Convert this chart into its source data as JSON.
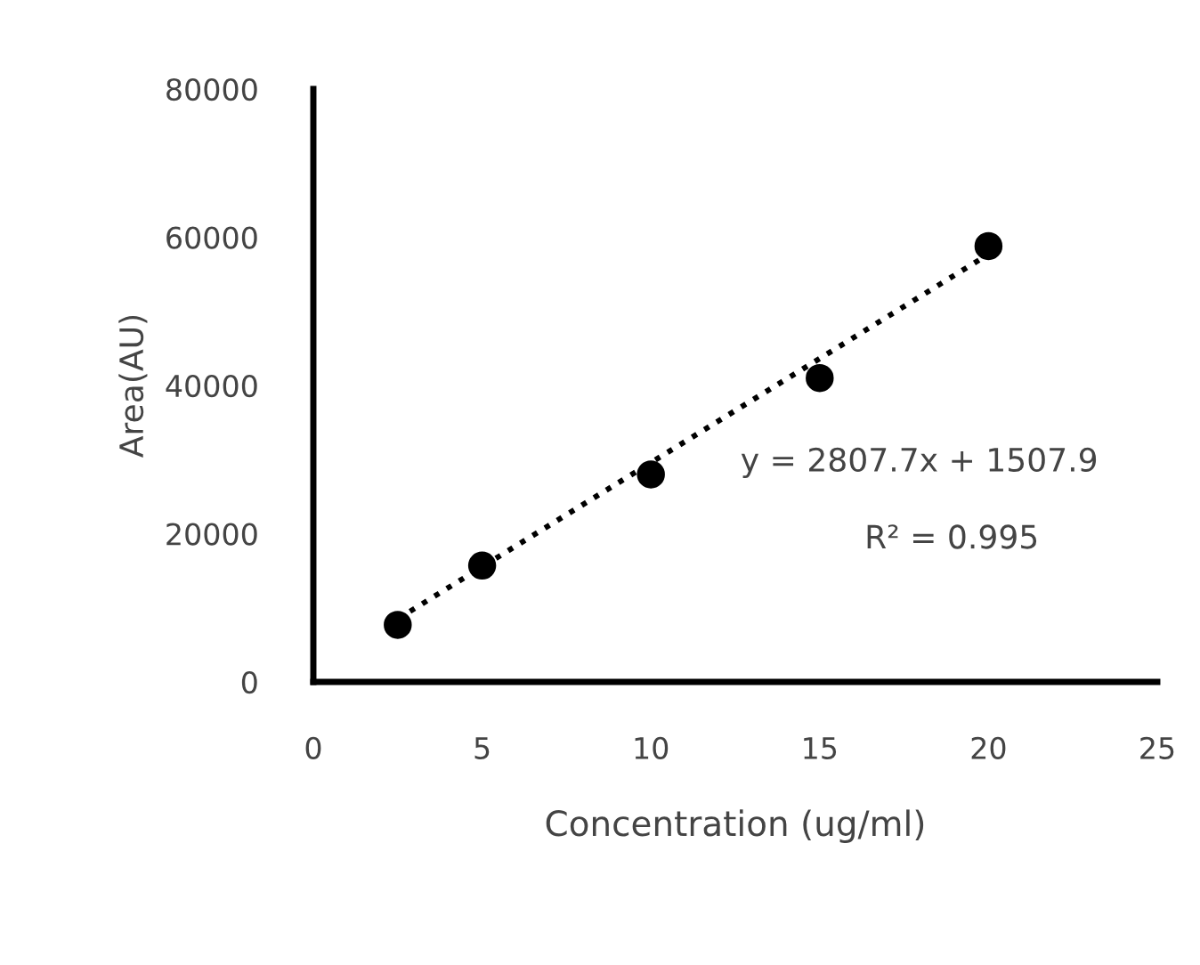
{
  "chart_data": {
    "type": "scatter",
    "xlabel": "Concentration (ug/ml)",
    "ylabel": "Area(AU)",
    "x": [
      2.5,
      5,
      10,
      15,
      20
    ],
    "series": [
      {
        "color": "#000000",
        "marker": "circle",
        "values": [
          7700,
          15700,
          28000,
          41000,
          58800
        ]
      },
      {
        "type": "line",
        "color": "#000000",
        "marker": "none",
        "line_style": "dotted",
        "x": [
          2.5,
          20
        ],
        "values": [
          8500,
          57700
        ]
      }
    ],
    "xlim": [
      0,
      25
    ],
    "xticks": [
      0,
      5,
      10,
      15,
      20,
      25
    ],
    "ylim": [
      0,
      80000
    ],
    "yticks": [
      0,
      20000,
      40000,
      60000,
      80000
    ],
    "grid": false,
    "legend": false,
    "annotations": [
      "y = 2807.7x + 1507.9",
      "R² = 0.995"
    ]
  }
}
